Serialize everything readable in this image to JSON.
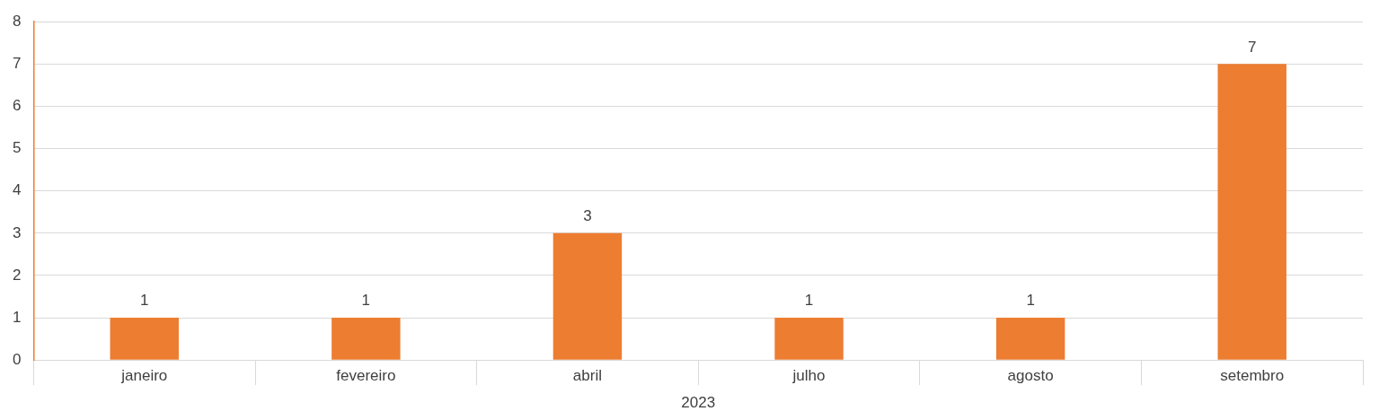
{
  "chart_data": {
    "type": "bar",
    "xlabel": "2023",
    "categories": [
      "janeiro",
      "fevereiro",
      "abril",
      "julho",
      "agosto",
      "setembro"
    ],
    "values": [
      1,
      1,
      3,
      1,
      1,
      7
    ],
    "color": "#ed7d31",
    "ylim": [
      0,
      8
    ],
    "yticks": [
      0,
      1,
      2,
      3,
      4,
      5,
      6,
      7,
      8
    ],
    "grid": "y",
    "data_labels": true,
    "legend": false
  }
}
